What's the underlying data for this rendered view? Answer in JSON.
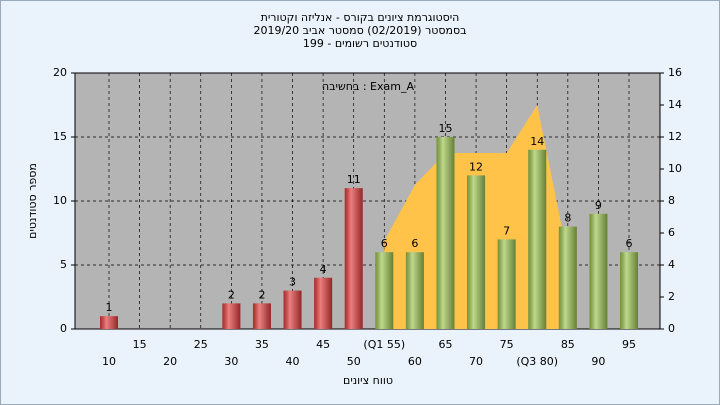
{
  "chart_data": {
    "type": "bar",
    "title": [
      "היסטוגרמת ציונים בקורס - אנליזה וקטורית",
      "בסמסטר  (02/2019)  סמסטר אביב 2019/20",
      "סטודנטים רשומים - 199"
    ],
    "annotation": "בחשיבה : Exam_A",
    "x_label": "טווח ציונים",
    "y_label": "מספר סטודנטים",
    "categories": [
      "10",
      "15",
      "20",
      "25",
      "30",
      "35",
      "40",
      "45",
      "50",
      "(Q1 55)",
      "60",
      "65",
      "70",
      "75",
      "(Q3 80)",
      "85",
      "90",
      "95"
    ],
    "series": [
      {
        "values": [
          1,
          0,
          0,
          0,
          2,
          2,
          3,
          4,
          11,
          6,
          6,
          15,
          12,
          7,
          14,
          8,
          9,
          6
        ],
        "colors": [
          "#e23b3b",
          "#e23b3b",
          "#e23b3b",
          "#e23b3b",
          "#e23b3b",
          "#e23b3b",
          "#e23b3b",
          "#e23b3b",
          "#e23b3b",
          "#9cc450",
          "#9cc450",
          "#9cc450",
          "#9cc450",
          "#9cc450",
          "#9cc450",
          "#9cc450",
          "#9cc450",
          "#9cc450"
        ]
      },
      {
        "type": "area",
        "axis": "y2",
        "color": "#ffc34a",
        "values": [
          null,
          null,
          null,
          null,
          null,
          null,
          null,
          null,
          null,
          5.5,
          9,
          11,
          11,
          11,
          14,
          4.5,
          null,
          null
        ]
      }
    ],
    "ylim": [
      0,
      20
    ],
    "yticks": [
      0,
      5,
      10,
      15,
      20
    ],
    "y2lim": [
      0,
      16
    ],
    "y2ticks": [
      0,
      2,
      4,
      6,
      8,
      10,
      12,
      14,
      16
    ],
    "grid": true
  }
}
